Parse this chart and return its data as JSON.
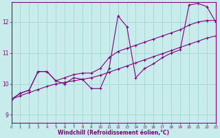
{
  "xlabel": "Windchill (Refroidissement éolien,°C)",
  "xlim": [
    0,
    23
  ],
  "ylim": [
    8.75,
    12.65
  ],
  "xticks": [
    0,
    1,
    2,
    3,
    4,
    5,
    6,
    7,
    8,
    9,
    10,
    11,
    12,
    13,
    14,
    15,
    16,
    17,
    18,
    19,
    20,
    21,
    22,
    23
  ],
  "yticks": [
    9,
    10,
    11,
    12
  ],
  "bg_color": "#c8ecec",
  "grid_color": "#a8d8d8",
  "line_color": "#800080",
  "line1_x": [
    0,
    1,
    2,
    3,
    4,
    5,
    6,
    7,
    8,
    9,
    10,
    11,
    12,
    13,
    14,
    15,
    16,
    17,
    18,
    19,
    20,
    21,
    22,
    23
  ],
  "line1_y": [
    9.5,
    9.7,
    9.8,
    10.4,
    10.4,
    10.1,
    10.0,
    10.2,
    10.15,
    9.85,
    9.85,
    10.5,
    12.2,
    11.85,
    10.2,
    10.5,
    10.65,
    10.85,
    11.0,
    11.1,
    12.55,
    12.6,
    12.5,
    12.0
  ],
  "line2_x": [
    0,
    1,
    2,
    3,
    4,
    5,
    6,
    7,
    8,
    9,
    10,
    11,
    12,
    13,
    14,
    15,
    16,
    17,
    18,
    19,
    20,
    21,
    22,
    23
  ],
  "line2_y": [
    9.5,
    9.7,
    9.8,
    10.4,
    10.4,
    10.1,
    10.2,
    10.3,
    10.35,
    10.35,
    10.5,
    10.85,
    11.05,
    11.15,
    11.25,
    11.35,
    11.45,
    11.55,
    11.65,
    11.75,
    11.9,
    12.0,
    12.05,
    12.05
  ],
  "line3_x": [
    0,
    1,
    2,
    3,
    4,
    5,
    6,
    7,
    8,
    9,
    10,
    11,
    12,
    13,
    14,
    15,
    16,
    17,
    18,
    19,
    20,
    21,
    22,
    23
  ],
  "line3_y": [
    9.5,
    9.62,
    9.72,
    9.82,
    9.92,
    10.0,
    10.05,
    10.1,
    10.15,
    10.2,
    10.28,
    10.38,
    10.48,
    10.58,
    10.68,
    10.78,
    10.88,
    10.98,
    11.08,
    11.18,
    11.28,
    11.38,
    11.48,
    11.55
  ]
}
